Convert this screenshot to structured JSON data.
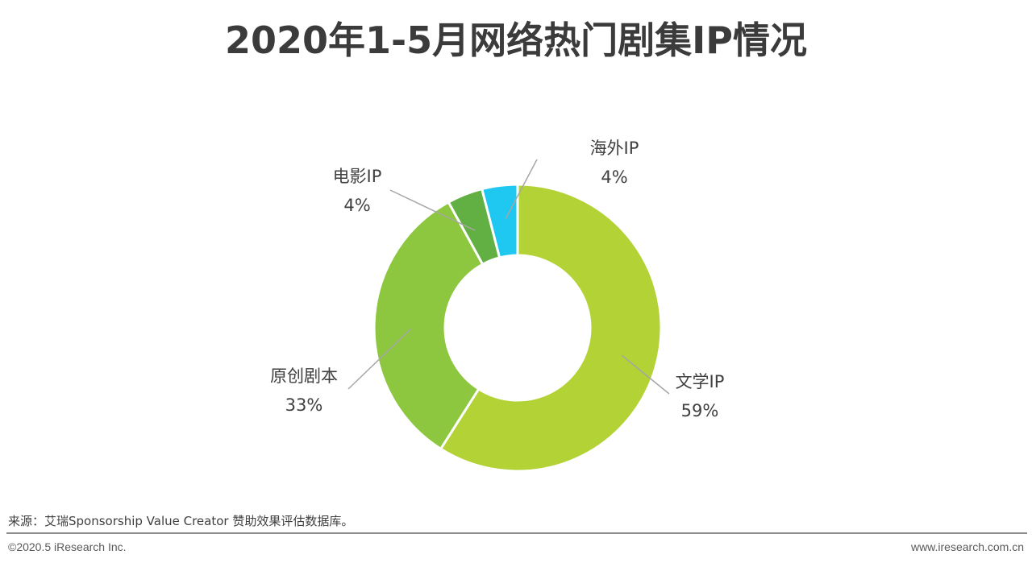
{
  "chart_data": {
    "type": "pie",
    "title": "2020年1-5月网络热门剧集IP情况",
    "donut": true,
    "slices": [
      {
        "label": "文学IP",
        "value": 59,
        "value_label": "59%",
        "color": "#b2d235"
      },
      {
        "label": "原创剧本",
        "value": 33,
        "value_label": "33%",
        "color": "#8dc63f"
      },
      {
        "label": "电影IP",
        "value": 4,
        "value_label": "4%",
        "color": "#62b044"
      },
      {
        "label": "海外IP",
        "value": 4,
        "value_label": "4%",
        "color": "#1ec8f0"
      }
    ]
  },
  "footer": {
    "source": "来源：艾瑞Sponsorship Value Creator 赞助效果评估数据库。",
    "copyright": "©2020.5 iResearch Inc.",
    "website": "www.iresearch.com.cn"
  },
  "colors": {
    "leader_line": "#a6a6a6",
    "divider": "#8c8c8c"
  }
}
